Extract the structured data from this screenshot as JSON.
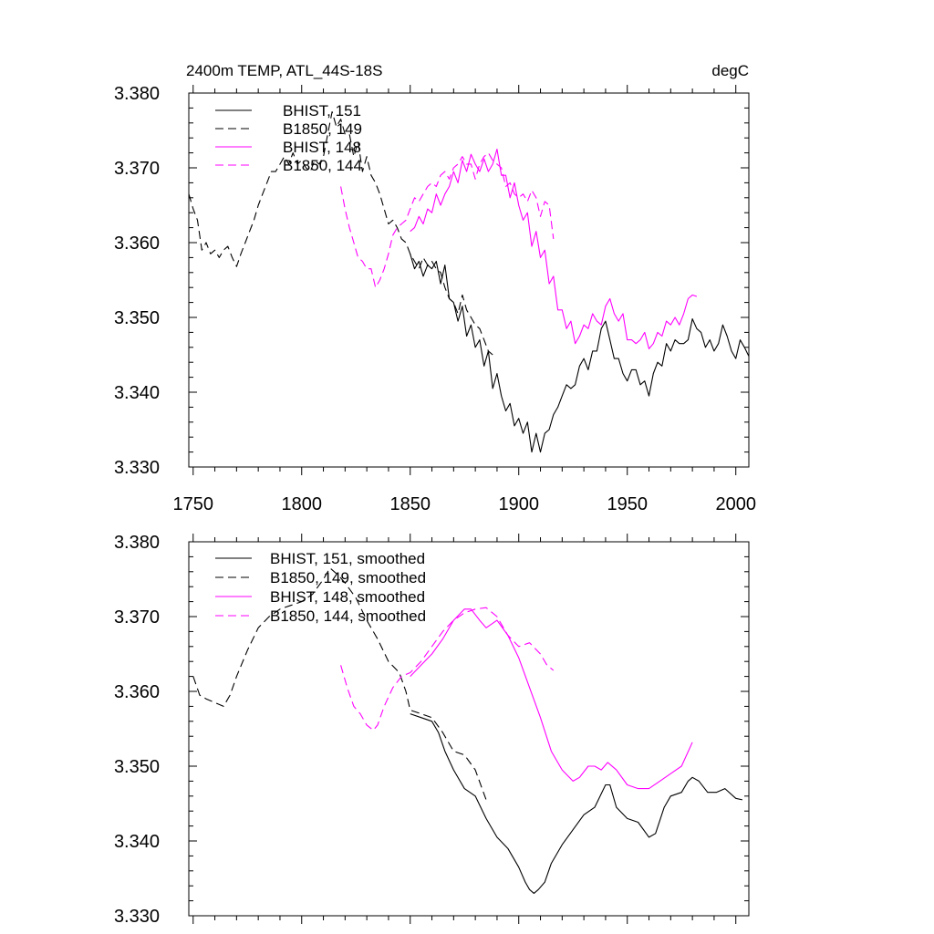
{
  "colors": {
    "black": "#000000",
    "magenta": "#ff00ff"
  },
  "chart_data": [
    {
      "type": "line",
      "panel": "top",
      "title": "2400m TEMP, ATL_44S-18S",
      "title_right": "degC",
      "xlim": [
        1748,
        2006
      ],
      "ylim": [
        3.33,
        3.38
      ],
      "xticks": [
        1750,
        1800,
        1850,
        1900,
        1950,
        2000
      ],
      "xtick_labels": [
        "1750",
        "1800",
        "1850",
        "1900",
        "1950",
        "2000"
      ],
      "yticks": [
        3.33,
        3.34,
        3.35,
        3.36,
        3.37,
        3.38
      ],
      "ytick_labels": [
        "3.330",
        "3.340",
        "3.350",
        "3.360",
        "3.370",
        "3.380"
      ],
      "legend_position": "top-left",
      "series": [
        {
          "name": "BHIST, 151",
          "color": "#000000",
          "dash": "solid",
          "x": [
            1850,
            1852,
            1854,
            1856,
            1858,
            1860,
            1862,
            1864,
            1866,
            1868,
            1870,
            1872,
            1874,
            1876,
            1878,
            1880,
            1882,
            1884,
            1886,
            1888,
            1890,
            1892,
            1894,
            1896,
            1898,
            1900,
            1902,
            1904,
            1906,
            1908,
            1910,
            1912,
            1914,
            1916,
            1918,
            1920,
            1922,
            1924,
            1926,
            1928,
            1930,
            1932,
            1934,
            1936,
            1938,
            1940,
            1942,
            1944,
            1946,
            1948,
            1950,
            1952,
            1954,
            1956,
            1958,
            1960,
            1962,
            1964,
            1966,
            1968,
            1970,
            1972,
            1974,
            1976,
            1978,
            1980,
            1982,
            1984,
            1986,
            1988,
            1990,
            1992,
            1994,
            1996,
            1998,
            2000,
            2002,
            2004,
            2006
          ],
          "y": [
            3.3585,
            3.3565,
            3.3575,
            3.3555,
            3.357,
            3.3565,
            3.3575,
            3.3545,
            3.357,
            3.3525,
            3.352,
            3.3495,
            3.3515,
            3.3475,
            3.349,
            3.346,
            3.347,
            3.3435,
            3.3455,
            3.3405,
            3.3425,
            3.3395,
            3.3375,
            3.3385,
            3.3355,
            3.3365,
            3.3345,
            3.336,
            3.332,
            3.3345,
            3.332,
            3.3345,
            3.335,
            3.337,
            3.338,
            3.3395,
            3.341,
            3.3405,
            3.341,
            3.3435,
            3.3445,
            3.343,
            3.3455,
            3.3455,
            3.3485,
            3.3495,
            3.347,
            3.3445,
            3.3445,
            3.3425,
            3.3415,
            3.343,
            3.343,
            3.341,
            3.3415,
            3.3395,
            3.3425,
            3.344,
            3.3435,
            3.3465,
            3.3455,
            3.347,
            3.3465,
            3.3465,
            3.347,
            3.3498,
            3.3485,
            3.348,
            3.346,
            3.347,
            3.3455,
            3.3465,
            3.349,
            3.3475,
            3.3455,
            3.3445,
            3.347,
            3.346,
            3.3448
          ]
        },
        {
          "name": "B1850, 149",
          "color": "#000000",
          "dash": "dashed",
          "x": [
            1748,
            1750,
            1752,
            1754,
            1756,
            1758,
            1760,
            1762,
            1764,
            1766,
            1768,
            1770,
            1772,
            1774,
            1776,
            1778,
            1780,
            1782,
            1784,
            1786,
            1788,
            1790,
            1792,
            1794,
            1796,
            1798,
            1800,
            1802,
            1804,
            1806,
            1808,
            1810,
            1812,
            1814,
            1816,
            1818,
            1820,
            1822,
            1824,
            1826,
            1828,
            1830,
            1832,
            1834,
            1836,
            1838,
            1840,
            1842,
            1844,
            1846,
            1848,
            1850,
            1852,
            1854,
            1856,
            1858,
            1860,
            1862,
            1864,
            1866,
            1868,
            1870,
            1872,
            1874,
            1876,
            1878,
            1880,
            1882,
            1884,
            1886,
            1888
          ],
          "y": [
            3.3665,
            3.3645,
            3.363,
            3.359,
            3.36,
            3.3585,
            3.359,
            3.358,
            3.359,
            3.3595,
            3.358,
            3.3568,
            3.3585,
            3.36,
            3.3615,
            3.363,
            3.365,
            3.3665,
            3.368,
            3.3695,
            3.3695,
            3.3705,
            3.3715,
            3.3705,
            3.372,
            3.3705,
            3.371,
            3.37,
            3.3695,
            3.371,
            3.3705,
            3.3715,
            3.3745,
            3.3775,
            3.3755,
            3.3765,
            3.3745,
            3.3745,
            3.3715,
            3.3735,
            3.3695,
            3.3715,
            3.369,
            3.368,
            3.3665,
            3.3645,
            3.3625,
            3.363,
            3.362,
            3.3605,
            3.36,
            3.3585,
            3.3575,
            3.3565,
            3.358,
            3.357,
            3.3575,
            3.3565,
            3.356,
            3.354,
            3.3525,
            3.352,
            3.3505,
            3.353,
            3.351,
            3.35,
            3.349,
            3.3485,
            3.347,
            3.3455,
            3.345
          ]
        },
        {
          "name": "BHIST, 148",
          "color": "#ff00ff",
          "dash": "solid",
          "x": [
            1850,
            1852,
            1854,
            1856,
            1858,
            1860,
            1862,
            1864,
            1866,
            1868,
            1870,
            1872,
            1874,
            1876,
            1878,
            1880,
            1882,
            1884,
            1886,
            1888,
            1890,
            1892,
            1894,
            1896,
            1898,
            1900,
            1902,
            1904,
            1906,
            1908,
            1910,
            1912,
            1914,
            1916,
            1918,
            1920,
            1922,
            1924,
            1926,
            1928,
            1930,
            1932,
            1934,
            1936,
            1938,
            1940,
            1942,
            1944,
            1946,
            1948,
            1950,
            1952,
            1954,
            1956,
            1958,
            1960,
            1962,
            1964,
            1966,
            1968,
            1970,
            1972,
            1974,
            1976,
            1978,
            1980,
            1982
          ],
          "y": [
            3.3615,
            3.362,
            3.3635,
            3.3625,
            3.3645,
            3.364,
            3.3665,
            3.365,
            3.3665,
            3.3675,
            3.3695,
            3.368,
            3.371,
            3.3695,
            3.3718,
            3.3705,
            3.3695,
            3.3712,
            3.3695,
            3.3705,
            3.3725,
            3.369,
            3.369,
            3.366,
            3.368,
            3.365,
            3.363,
            3.364,
            3.3595,
            3.3615,
            3.358,
            3.359,
            3.3545,
            3.3555,
            3.351,
            3.351,
            3.3485,
            3.3495,
            3.3465,
            3.3475,
            3.349,
            3.3485,
            3.3505,
            3.3495,
            3.349,
            3.3515,
            3.3525,
            3.3505,
            3.3495,
            3.3505,
            3.347,
            3.347,
            3.3465,
            3.347,
            3.348,
            3.3458,
            3.3465,
            3.348,
            3.3475,
            3.3495,
            3.349,
            3.35,
            3.349,
            3.3505,
            3.3525,
            3.353,
            3.3528
          ]
        },
        {
          "name": "B1850, 144",
          "color": "#ff00ff",
          "dash": "dashed",
          "x": [
            1818,
            1820,
            1822,
            1824,
            1826,
            1828,
            1830,
            1832,
            1834,
            1836,
            1838,
            1840,
            1842,
            1844,
            1846,
            1848,
            1850,
            1852,
            1854,
            1856,
            1858,
            1860,
            1862,
            1864,
            1866,
            1868,
            1870,
            1872,
            1874,
            1876,
            1878,
            1880,
            1882,
            1884,
            1886,
            1888,
            1890,
            1892,
            1894,
            1896,
            1898,
            1900,
            1902,
            1904,
            1906,
            1908,
            1910,
            1912,
            1914,
            1916
          ],
          "y": [
            3.3675,
            3.3645,
            3.362,
            3.36,
            3.358,
            3.3575,
            3.3565,
            3.3565,
            3.354,
            3.355,
            3.3565,
            3.3585,
            3.361,
            3.362,
            3.3625,
            3.363,
            3.3645,
            3.366,
            3.3655,
            3.3665,
            3.3675,
            3.368,
            3.3675,
            3.369,
            3.3695,
            3.3685,
            3.37,
            3.3705,
            3.3715,
            3.3705,
            3.3705,
            3.3685,
            3.3705,
            3.3715,
            3.372,
            3.371,
            3.3705,
            3.37,
            3.3675,
            3.368,
            3.3665,
            3.366,
            3.3665,
            3.3655,
            3.367,
            3.366,
            3.3635,
            3.3655,
            3.365,
            3.3605
          ]
        }
      ]
    },
    {
      "type": "line",
      "panel": "bottom",
      "xlim": [
        1748,
        2006
      ],
      "ylim": [
        3.33,
        3.38
      ],
      "yticks": [
        3.33,
        3.34,
        3.35,
        3.36,
        3.37,
        3.38
      ],
      "ytick_labels": [
        "3.330",
        "3.340",
        "3.350",
        "3.360",
        "3.370",
        "3.380"
      ],
      "xticks": [
        1750,
        1800,
        1850,
        1900,
        1950,
        2000
      ],
      "legend_position": "top-left",
      "series": [
        {
          "name": "BHIST, 151, smoothed",
          "color": "#000000",
          "dash": "solid",
          "x": [
            1850,
            1855,
            1860,
            1863,
            1866,
            1870,
            1875,
            1880,
            1885,
            1890,
            1895,
            1900,
            1903,
            1905,
            1907,
            1909,
            1912,
            1915,
            1920,
            1925,
            1930,
            1935,
            1940,
            1942,
            1945,
            1950,
            1955,
            1960,
            1963,
            1967,
            1970,
            1975,
            1978,
            1980,
            1983,
            1987,
            1991,
            1995,
            2000,
            2003
          ],
          "y": [
            3.357,
            3.3565,
            3.356,
            3.3545,
            3.352,
            3.3495,
            3.347,
            3.346,
            3.343,
            3.3405,
            3.339,
            3.3365,
            3.3345,
            3.3335,
            3.333,
            3.3335,
            3.3345,
            3.337,
            3.3395,
            3.3415,
            3.3435,
            3.3445,
            3.3475,
            3.3475,
            3.3445,
            3.343,
            3.3425,
            3.3405,
            3.341,
            3.3445,
            3.346,
            3.3465,
            3.348,
            3.3485,
            3.348,
            3.3465,
            3.3465,
            3.347,
            3.3457,
            3.3455
          ]
        },
        {
          "name": "B1850, 149, smoothed",
          "color": "#000000",
          "dash": "dashed",
          "x": [
            1750,
            1753,
            1756,
            1760,
            1764,
            1767,
            1770,
            1775,
            1780,
            1785,
            1790,
            1795,
            1800,
            1805,
            1810,
            1813,
            1817,
            1820,
            1825,
            1830,
            1835,
            1840,
            1845,
            1848,
            1850,
            1855,
            1860,
            1865,
            1870,
            1875,
            1880,
            1885
          ],
          "y": [
            3.362,
            3.3595,
            3.359,
            3.3585,
            3.358,
            3.3595,
            3.362,
            3.3655,
            3.3685,
            3.37,
            3.371,
            3.3715,
            3.372,
            3.373,
            3.375,
            3.3765,
            3.3755,
            3.3745,
            3.3725,
            3.3695,
            3.367,
            3.364,
            3.3625,
            3.36,
            3.3575,
            3.357,
            3.3565,
            3.3545,
            3.352,
            3.3515,
            3.3495,
            3.3455
          ]
        },
        {
          "name": "BHIST, 148, smoothed",
          "color": "#ff00ff",
          "dash": "solid",
          "x": [
            1850,
            1855,
            1860,
            1865,
            1870,
            1875,
            1878,
            1882,
            1885,
            1890,
            1895,
            1900,
            1905,
            1910,
            1915,
            1920,
            1925,
            1928,
            1932,
            1935,
            1938,
            1941,
            1945,
            1950,
            1955,
            1960,
            1965,
            1970,
            1975,
            1980
          ],
          "y": [
            3.362,
            3.3635,
            3.365,
            3.367,
            3.3695,
            3.371,
            3.371,
            3.3695,
            3.3685,
            3.3695,
            3.3675,
            3.3645,
            3.3605,
            3.3565,
            3.352,
            3.3495,
            3.348,
            3.3485,
            3.35,
            3.35,
            3.3495,
            3.3505,
            3.3495,
            3.3475,
            3.347,
            3.347,
            3.348,
            3.349,
            3.35,
            3.3532
          ]
        },
        {
          "name": "B1850, 144, smoothed",
          "color": "#ff00ff",
          "dash": "dashed",
          "x": [
            1818,
            1821,
            1824,
            1827,
            1830,
            1833,
            1835,
            1838,
            1842,
            1846,
            1850,
            1855,
            1860,
            1865,
            1870,
            1875,
            1880,
            1885,
            1890,
            1895,
            1900,
            1905,
            1910,
            1913,
            1916
          ],
          "y": [
            3.3635,
            3.3605,
            3.358,
            3.357,
            3.3555,
            3.3548,
            3.3555,
            3.358,
            3.3605,
            3.362,
            3.3625,
            3.364,
            3.366,
            3.368,
            3.3695,
            3.3705,
            3.371,
            3.3712,
            3.37,
            3.3675,
            3.366,
            3.3665,
            3.365,
            3.3635,
            3.3628
          ]
        }
      ]
    }
  ]
}
